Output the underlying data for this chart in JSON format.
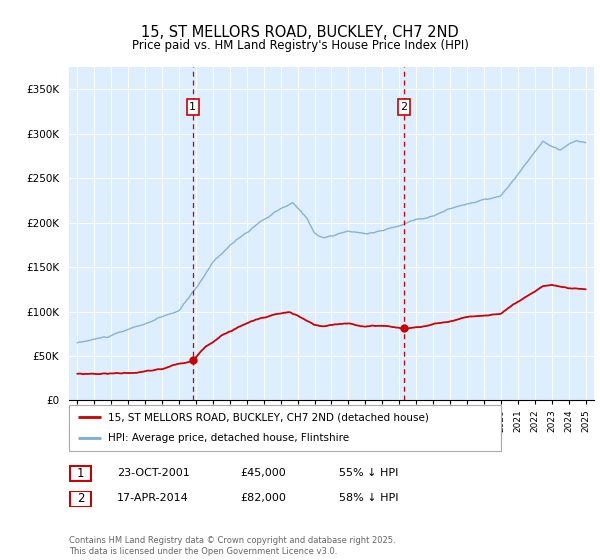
{
  "title": "15, ST MELLORS ROAD, BUCKLEY, CH7 2ND",
  "subtitle": "Price paid vs. HM Land Registry's House Price Index (HPI)",
  "legend_line1": "15, ST MELLORS ROAD, BUCKLEY, CH7 2ND (detached house)",
  "legend_line2": "HPI: Average price, detached house, Flintshire",
  "annotation1_date": "23-OCT-2001",
  "annotation1_price": "£45,000",
  "annotation1_hpi": "55% ↓ HPI",
  "annotation2_date": "17-APR-2014",
  "annotation2_price": "£82,000",
  "annotation2_hpi": "58% ↓ HPI",
  "footer": "Contains HM Land Registry data © Crown copyright and database right 2025.\nThis data is licensed under the Open Government Licence v3.0.",
  "ylim": [
    0,
    375000
  ],
  "yticks": [
    0,
    50000,
    100000,
    150000,
    200000,
    250000,
    300000,
    350000
  ],
  "ytick_labels": [
    "£0",
    "£50K",
    "£100K",
    "£150K",
    "£200K",
    "£250K",
    "£300K",
    "£350K"
  ],
  "red_line_color": "#cc0000",
  "blue_line_color": "#7aadcf",
  "bg_color": "#ddeeff",
  "vline_color": "#cc0000",
  "marker_color": "#cc0000",
  "annotation_box_color": "#cc0000",
  "grid_color": "#ffffff",
  "sale1_x": 2001.81,
  "sale1_y": 45000,
  "sale2_x": 2014.29,
  "sale2_y": 82000,
  "xlim_left": 1994.5,
  "xlim_right": 2025.5
}
